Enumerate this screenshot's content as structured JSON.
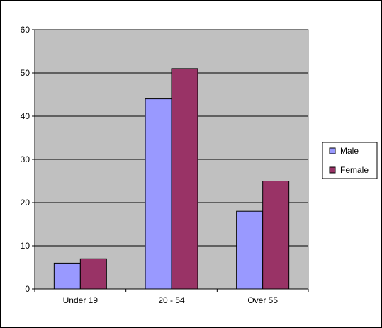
{
  "chart_data": {
    "type": "bar",
    "categories": [
      "Under 19",
      "20 - 54",
      "Over 55"
    ],
    "series": [
      {
        "name": "Male",
        "values": [
          6,
          44,
          18
        ],
        "color": "#9999ff"
      },
      {
        "name": "Female",
        "values": [
          7,
          51,
          25
        ],
        "color": "#993366"
      }
    ],
    "ylim": [
      0,
      60
    ],
    "yticks": [
      0,
      10,
      20,
      30,
      40,
      50,
      60
    ],
    "grid": true,
    "plot_background": "#c0c0c0",
    "legend_position": "right",
    "title": "",
    "xlabel": "",
    "ylabel": ""
  }
}
